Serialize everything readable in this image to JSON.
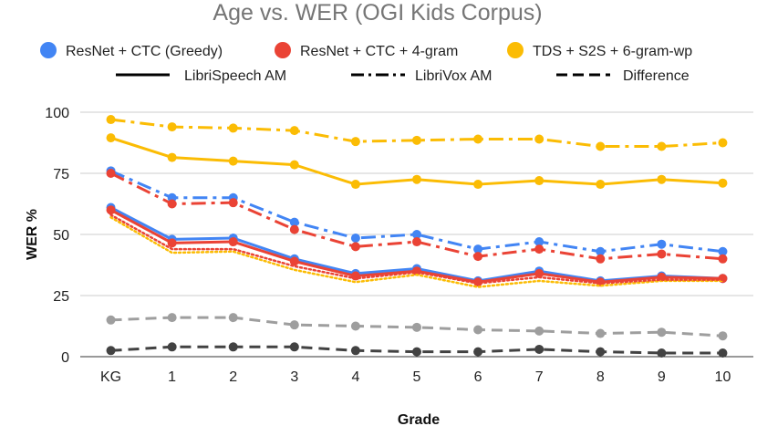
{
  "chart_data": {
    "type": "line",
    "title": "Age vs. WER (OGI Kids Corpus)",
    "xlabel": "Grade",
    "ylabel": "WER %",
    "categories": [
      "KG",
      "1",
      "2",
      "3",
      "4",
      "5",
      "6",
      "7",
      "8",
      "9",
      "10"
    ],
    "y_ticks": [
      "0",
      "25",
      "50",
      "75",
      "100"
    ],
    "ylim": [
      0,
      100
    ],
    "grid": true,
    "legend_models": [
      {
        "name": "ResNet + CTC (Greedy)",
        "color": "#4285F4"
      },
      {
        "name": "ResNet + CTC + 4-gram",
        "color": "#EA4335"
      },
      {
        "name": "TDS + S2S + 6-gram-wp",
        "color": "#FBBC04"
      }
    ],
    "legend_styles": [
      {
        "name": "LibriSpeech AM",
        "dash": "solid"
      },
      {
        "name": "LibriVox AM",
        "dash": "dashdot"
      },
      {
        "name": "Difference",
        "dash": "dashed"
      }
    ],
    "series": [
      {
        "name": "ResNet + CTC (Greedy) - LibriSpeech AM",
        "color": "#4285F4",
        "dash": "solid",
        "values": [
          61,
          48,
          48.5,
          40,
          34,
          36,
          31,
          35,
          31,
          33,
          32
        ]
      },
      {
        "name": "ResNet + CTC (Greedy) - LibriVox AM",
        "color": "#4285F4",
        "dash": "dashdot",
        "values": [
          76,
          65,
          65,
          55,
          48.5,
          50,
          44,
          47,
          43,
          46,
          43
        ]
      },
      {
        "name": "ResNet + CTC + 4-gram - LibriSpeech AM",
        "color": "#EA4335",
        "dash": "solid",
        "values": [
          60,
          46.5,
          47,
          39,
          33,
          35,
          30.5,
          34,
          30.5,
          32.5,
          32
        ]
      },
      {
        "name": "ResNet + CTC + 4-gram - LibriVox AM",
        "color": "#EA4335",
        "dash": "dashdot",
        "values": [
          75,
          62.5,
          63,
          52,
          45,
          47,
          41,
          44,
          40,
          42,
          40
        ]
      },
      {
        "name": "TDS + S2S + 6-gram-wp - LibriSpeech AM",
        "color": "#FBBC04",
        "dash": "solid",
        "values": [
          89.5,
          81.5,
          80,
          78.5,
          70.5,
          72.5,
          70.5,
          72,
          70.5,
          72.5,
          71
        ]
      },
      {
        "name": "TDS + S2S + 6-gram-wp - LibriVox AM",
        "color": "#FBBC04",
        "dash": "dashdot",
        "values": [
          97,
          94,
          93.5,
          92.5,
          88,
          88.5,
          89,
          89,
          86,
          86,
          87.5
        ]
      },
      {
        "name": "Difference (high)",
        "color": "#9E9E9E",
        "dash": "dashed",
        "values": [
          15,
          16,
          16,
          13,
          12.5,
          12,
          11,
          10.5,
          9.5,
          10,
          8.5
        ]
      },
      {
        "name": "Difference (low)",
        "color": "#424242",
        "dash": "dashed",
        "values": [
          2.5,
          4,
          4,
          4,
          2.5,
          2,
          2,
          3,
          2,
          1.5,
          1.5
        ]
      },
      {
        "name": "TDS + S2S + 6-gram-wp - dotted",
        "color": "#FBBC04",
        "dash": "dotted",
        "values": [
          57,
          42.5,
          43,
          35.5,
          30.5,
          33.5,
          28.5,
          31,
          29,
          31,
          31
        ]
      },
      {
        "name": "ResNet + CTC + 4-gram - dotted",
        "color": "#EA4335",
        "dash": "dotted",
        "values": [
          58,
          44,
          44,
          37,
          32,
          34.5,
          30,
          32.5,
          30,
          31.5,
          31.5
        ]
      }
    ]
  }
}
